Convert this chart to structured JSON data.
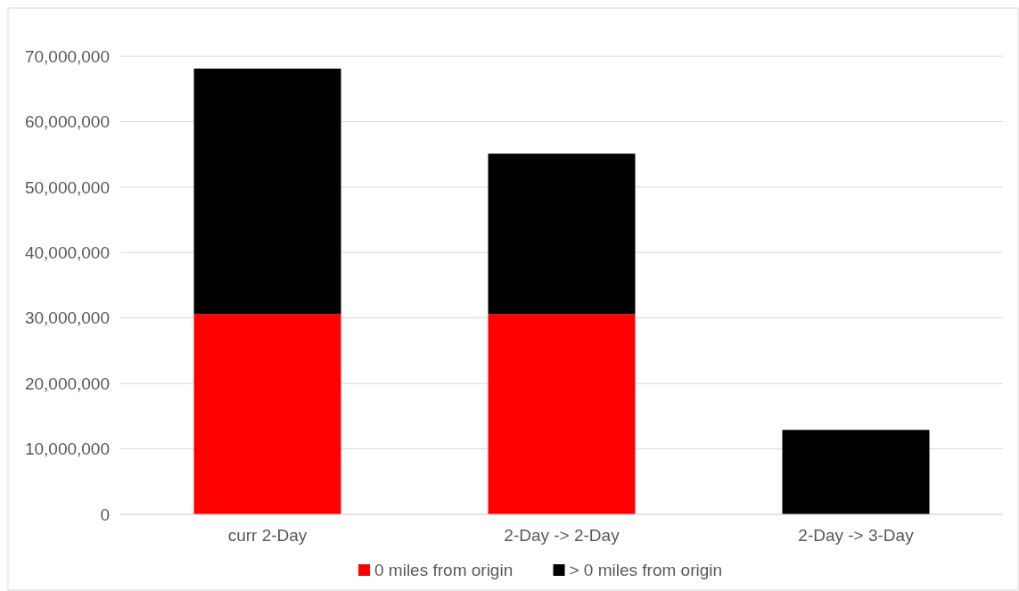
{
  "chart_data": {
    "type": "bar",
    "stacked": true,
    "categories": [
      "curr 2-Day",
      "2-Day -> 2-Day",
      "2-Day -> 3-Day"
    ],
    "series": [
      {
        "name": "0 miles from origin",
        "color": "#ff0000",
        "values": [
          30600000,
          30600000,
          null
        ]
      },
      {
        "name": "> 0 miles from origin",
        "color": "#000000",
        "values": [
          37500000,
          24500000,
          12900000
        ]
      }
    ],
    "ylim": [
      0,
      70000000
    ],
    "yticks": [
      {
        "value": 0,
        "label": "0"
      },
      {
        "value": 10000000,
        "label": "10,000,000"
      },
      {
        "value": 20000000,
        "label": "20,000,000"
      },
      {
        "value": 30000000,
        "label": "30,000,000"
      },
      {
        "value": 40000000,
        "label": "40,000,000"
      },
      {
        "value": 50000000,
        "label": "50,000,000"
      },
      {
        "value": 60000000,
        "label": "60,000,000"
      },
      {
        "value": 70000000,
        "label": "70,000,000"
      }
    ],
    "grid": "y",
    "legend": "bottom"
  }
}
